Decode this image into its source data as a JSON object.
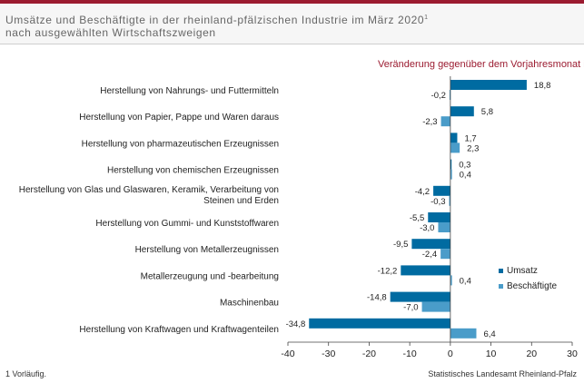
{
  "header": {
    "title": "Umsätze und Beschäftigte in der rheinland-pfälzischen Industrie im März 2020",
    "title_sup": "1",
    "subtitle": "nach ausgewählten Wirtschaftszweigen"
  },
  "footer": {
    "footnote": "1 Vorläufig.",
    "source": "Statistisches Landesamt Rheinland-Pfalz"
  },
  "chart_data": {
    "type": "bar",
    "orientation": "horizontal",
    "unit_label": "Veränderung gegenüber dem Vorjahresmonat in %",
    "categories": [
      [
        "Herstellung von Nahrungs- und Futtermitteln"
      ],
      [
        "Herstellung von Papier, Pappe und Waren daraus"
      ],
      [
        "Herstellung von pharmazeutischen Erzeugnissen"
      ],
      [
        "Herstellung von chemischen Erzeugnissen"
      ],
      [
        "Herstellung von Glas und Glaswaren, Keramik, Verarbeitung von",
        "Steinen und Erden"
      ],
      [
        "Herstellung von Gummi- und Kunststoffwaren"
      ],
      [
        "Herstellung von Metallerzeugnissen"
      ],
      [
        "Metallerzeugung und -bearbeitung"
      ],
      [
        "Maschinenbau"
      ],
      [
        "Herstellung von Kraftwagen und Kraftwagenteilen"
      ]
    ],
    "series": [
      {
        "name": "Umsatz",
        "color": "#006ba1",
        "values": [
          18.8,
          5.8,
          1.7,
          0.3,
          -4.2,
          -5.5,
          -9.5,
          -12.2,
          -14.8,
          -34.8
        ],
        "labels": [
          "18,8",
          "5,8",
          "1,7",
          "0,3",
          "-4,2",
          "-5,5",
          "-9,5",
          "-12,2",
          "-14,8",
          "-34,8"
        ]
      },
      {
        "name": "Beschäftigte",
        "color": "#4a9cc9",
        "values": [
          -0.2,
          -2.3,
          2.3,
          0.4,
          -0.3,
          -3.0,
          -2.4,
          0.4,
          -7.0,
          6.4
        ],
        "labels": [
          "-0,2",
          "-2,3",
          "2,3",
          "0,4",
          "-0,3",
          "-3,0",
          "-2,4",
          "0,4",
          "-7,0",
          "6,4"
        ]
      }
    ],
    "xlim": [
      -40,
      30
    ],
    "xticks": [
      -40,
      -30,
      -20,
      -10,
      0,
      10,
      20,
      30
    ],
    "xtick_labels": [
      "-40",
      "-30",
      "-20",
      "-10",
      "0",
      "10",
      "20",
      "30"
    ],
    "legend_placement": "right",
    "grid": false
  }
}
